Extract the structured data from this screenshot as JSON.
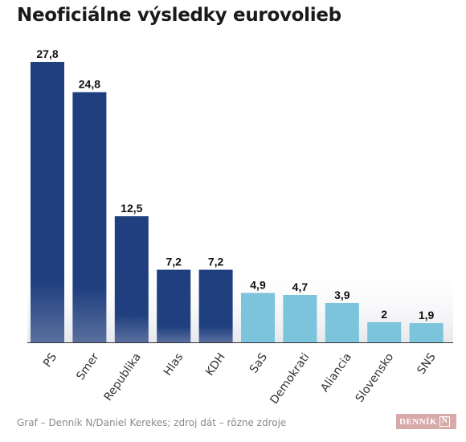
{
  "header": {
    "title": "Neoficiálne výsledky eurovolieb"
  },
  "chart_data": {
    "type": "bar",
    "title": "Neoficiálne výsledky eurovolieb",
    "xlabel": "",
    "ylabel": "",
    "categories": [
      "PS",
      "Smer",
      "Republika",
      "Hlas",
      "KDH",
      "SaS",
      "Demokrati",
      "Aliancia",
      "Slovensko",
      "SNS"
    ],
    "values": [
      27.8,
      24.8,
      12.5,
      7.2,
      7.2,
      4.9,
      4.7,
      3.9,
      2,
      1.9
    ],
    "value_labels": [
      "27,8",
      "24,8",
      "12,5",
      "7,2",
      "7,2",
      "4,9",
      "4,7",
      "3,9",
      "2",
      "1,9"
    ],
    "ylim": [
      0,
      27.8
    ],
    "grid": false,
    "colors": {
      "dark": "#1f3f7f",
      "dark_bottom": "#5a6f9e",
      "light": "#7cc3dc"
    },
    "dark_bar_count": 5
  },
  "footer": {
    "source": "Graf – Denník N/Daniel Kerekes; zdroj dát – rôzne zdroje",
    "logo_text": "DENNÍK",
    "logo_mark": "N"
  }
}
